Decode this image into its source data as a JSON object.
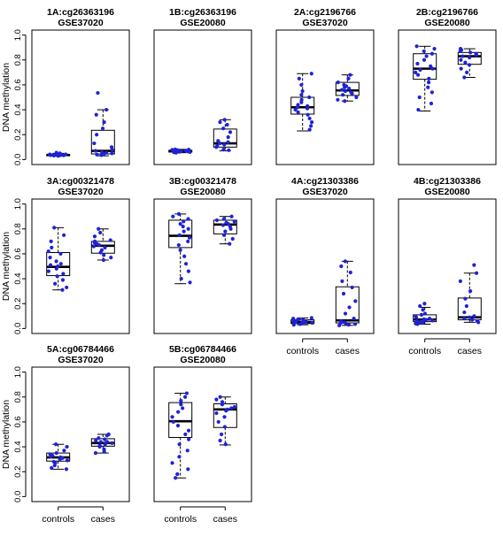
{
  "figure": {
    "ylabel": "DNA methylation",
    "categories": [
      "controls",
      "cases"
    ],
    "y_ticks": [
      0.0,
      0.2,
      0.4,
      0.6,
      0.8,
      1.0
    ],
    "y_tick_labels": [
      "0.0",
      "0.2",
      "0.4",
      "0.6",
      "0.8",
      "1.0"
    ],
    "colors": {
      "points": "#1f22d6",
      "box_fill": "#ffffff",
      "box_line": "#000000"
    }
  },
  "chart_data": [
    {
      "type": "box",
      "title": "1A:cg26363196",
      "subtitle": "GSE37020",
      "ylim": [
        -0.04,
        1.04
      ],
      "groups": [
        {
          "q1": 0.03,
          "median": 0.037,
          "q3": 0.04,
          "whisker_low": 0.027,
          "whisker_high": 0.05,
          "points": [
            0.03,
            0.033,
            0.035,
            0.036,
            0.037,
            0.038,
            0.04,
            0.042,
            0.05,
            0.055,
            0.032,
            0.034,
            0.039,
            0.041,
            0.036
          ]
        },
        {
          "q1": 0.045,
          "median": 0.07,
          "q3": 0.235,
          "whisker_low": 0.03,
          "whisker_high": 0.4,
          "points": [
            0.535,
            0.4,
            0.36,
            0.3,
            0.25,
            0.2,
            0.13,
            0.1,
            0.08,
            0.07,
            0.06,
            0.05,
            0.04,
            0.035,
            0.045,
            0.055
          ]
        }
      ]
    },
    {
      "type": "box",
      "title": "1B:cg26363196",
      "subtitle": "GSE20080",
      "ylim": [
        -0.04,
        1.04
      ],
      "groups": [
        {
          "q1": 0.06,
          "median": 0.068,
          "q3": 0.075,
          "whisker_low": 0.055,
          "whisker_high": 0.082,
          "points": [
            0.055,
            0.058,
            0.06,
            0.062,
            0.064,
            0.066,
            0.068,
            0.07,
            0.072,
            0.074,
            0.076,
            0.078,
            0.08,
            0.082,
            0.065
          ]
        },
        {
          "q1": 0.1,
          "median": 0.13,
          "q3": 0.245,
          "whisker_low": 0.07,
          "whisker_high": 0.32,
          "points": [
            0.32,
            0.3,
            0.28,
            0.25,
            0.22,
            0.18,
            0.15,
            0.13,
            0.12,
            0.11,
            0.1,
            0.08,
            0.075,
            0.14
          ]
        }
      ]
    },
    {
      "type": "box",
      "title": "2A:cg2196766",
      "subtitle": "GSE37020",
      "ylim": [
        -0.04,
        1.04
      ],
      "groups": [
        {
          "q1": 0.365,
          "median": 0.42,
          "q3": 0.5,
          "whisker_low": 0.23,
          "whisker_high": 0.69,
          "points": [
            0.69,
            0.65,
            0.6,
            0.55,
            0.52,
            0.5,
            0.48,
            0.46,
            0.44,
            0.42,
            0.41,
            0.4,
            0.38,
            0.36,
            0.33,
            0.3,
            0.27,
            0.24,
            0.43
          ]
        },
        {
          "q1": 0.515,
          "median": 0.555,
          "q3": 0.62,
          "whisker_low": 0.47,
          "whisker_high": 0.68,
          "points": [
            0.68,
            0.65,
            0.62,
            0.6,
            0.58,
            0.56,
            0.55,
            0.54,
            0.53,
            0.52,
            0.5,
            0.48,
            0.47,
            0.57,
            0.59
          ]
        }
      ]
    },
    {
      "type": "box",
      "title": "2B:cg2196766",
      "subtitle": "GSE20080",
      "ylim": [
        -0.04,
        1.04
      ],
      "groups": [
        {
          "q1": 0.645,
          "median": 0.73,
          "q3": 0.85,
          "whisker_low": 0.39,
          "whisker_high": 0.91,
          "points": [
            0.91,
            0.89,
            0.87,
            0.85,
            0.83,
            0.8,
            0.77,
            0.75,
            0.73,
            0.72,
            0.7,
            0.68,
            0.65,
            0.62,
            0.58,
            0.54,
            0.5,
            0.45,
            0.4
          ]
        },
        {
          "q1": 0.765,
          "median": 0.83,
          "q3": 0.86,
          "whisker_low": 0.66,
          "whisker_high": 0.89,
          "points": [
            0.89,
            0.88,
            0.87,
            0.86,
            0.85,
            0.84,
            0.83,
            0.82,
            0.8,
            0.78,
            0.76,
            0.73,
            0.7,
            0.66
          ]
        }
      ]
    },
    {
      "type": "box",
      "title": "3A:cg00321478",
      "subtitle": "GSE37020",
      "ylim": [
        -0.04,
        1.04
      ],
      "groups": [
        {
          "q1": 0.425,
          "median": 0.495,
          "q3": 0.61,
          "whisker_low": 0.31,
          "whisker_high": 0.81,
          "points": [
            0.81,
            0.75,
            0.7,
            0.65,
            0.62,
            0.6,
            0.57,
            0.54,
            0.51,
            0.5,
            0.48,
            0.46,
            0.44,
            0.42,
            0.39,
            0.36,
            0.33,
            0.31,
            0.52
          ]
        },
        {
          "q1": 0.605,
          "median": 0.665,
          "q3": 0.7,
          "whisker_low": 0.55,
          "whisker_high": 0.8,
          "points": [
            0.8,
            0.77,
            0.74,
            0.71,
            0.7,
            0.69,
            0.68,
            0.67,
            0.66,
            0.65,
            0.63,
            0.61,
            0.59,
            0.57,
            0.55
          ]
        }
      ]
    },
    {
      "type": "box",
      "title": "3B:cg00321478",
      "subtitle": "GSE20080",
      "ylim": [
        -0.04,
        1.04
      ],
      "groups": [
        {
          "q1": 0.65,
          "median": 0.745,
          "q3": 0.87,
          "whisker_low": 0.36,
          "whisker_high": 0.92,
          "points": [
            0.92,
            0.9,
            0.88,
            0.86,
            0.84,
            0.8,
            0.78,
            0.75,
            0.73,
            0.7,
            0.67,
            0.63,
            0.58,
            0.52,
            0.46,
            0.4,
            0.37,
            0.82
          ]
        },
        {
          "q1": 0.76,
          "median": 0.835,
          "q3": 0.87,
          "whisker_low": 0.68,
          "whisker_high": 0.9,
          "points": [
            0.9,
            0.88,
            0.87,
            0.86,
            0.85,
            0.84,
            0.83,
            0.82,
            0.8,
            0.78,
            0.75,
            0.72,
            0.68
          ]
        }
      ]
    },
    {
      "type": "box",
      "title": "4A:cg21303386",
      "subtitle": "GSE37020",
      "ylim": [
        -0.04,
        1.04
      ],
      "groups": [
        {
          "q1": 0.04,
          "median": 0.052,
          "q3": 0.07,
          "whisker_low": 0.03,
          "whisker_high": 0.085,
          "points": [
            0.03,
            0.035,
            0.04,
            0.045,
            0.05,
            0.052,
            0.055,
            0.06,
            0.065,
            0.07,
            0.075,
            0.08,
            0.085,
            0.048,
            0.058
          ]
        },
        {
          "q1": 0.045,
          "median": 0.065,
          "q3": 0.335,
          "whisker_low": 0.025,
          "whisker_high": 0.54,
          "points": [
            0.54,
            0.5,
            0.45,
            0.38,
            0.33,
            0.28,
            0.22,
            0.17,
            0.12,
            0.08,
            0.06,
            0.05,
            0.04,
            0.035,
            0.03,
            0.025,
            0.045
          ]
        }
      ]
    },
    {
      "type": "box",
      "title": "4B:cg21303386",
      "subtitle": "GSE20080",
      "ylim": [
        -0.04,
        1.04
      ],
      "groups": [
        {
          "q1": 0.055,
          "median": 0.072,
          "q3": 0.11,
          "whisker_low": 0.035,
          "whisker_high": 0.17,
          "points": [
            0.2,
            0.18,
            0.15,
            0.12,
            0.11,
            0.1,
            0.09,
            0.08,
            0.075,
            0.07,
            0.065,
            0.06,
            0.055,
            0.05,
            0.045,
            0.04,
            0.035
          ]
        },
        {
          "q1": 0.07,
          "median": 0.09,
          "q3": 0.245,
          "whisker_low": 0.05,
          "whisker_high": 0.445,
          "points": [
            0.51,
            0.445,
            0.38,
            0.3,
            0.24,
            0.18,
            0.13,
            0.1,
            0.09,
            0.08,
            0.07,
            0.06,
            0.05
          ]
        }
      ]
    },
    {
      "type": "box",
      "title": "5A:cg06784466",
      "subtitle": "GSE37020",
      "ylim": [
        -0.04,
        1.04
      ],
      "groups": [
        {
          "q1": 0.285,
          "median": 0.315,
          "q3": 0.35,
          "whisker_low": 0.22,
          "whisker_high": 0.42,
          "points": [
            0.42,
            0.4,
            0.37,
            0.35,
            0.34,
            0.33,
            0.32,
            0.31,
            0.3,
            0.29,
            0.28,
            0.27,
            0.25,
            0.23,
            0.22,
            0.315
          ]
        },
        {
          "q1": 0.405,
          "median": 0.43,
          "q3": 0.465,
          "whisker_low": 0.35,
          "whisker_high": 0.5,
          "points": [
            0.5,
            0.49,
            0.47,
            0.46,
            0.45,
            0.44,
            0.43,
            0.42,
            0.41,
            0.4,
            0.38,
            0.36,
            0.35,
            0.44
          ]
        }
      ]
    },
    {
      "type": "box",
      "title": "5B:cg06784466",
      "subtitle": "GSE20080",
      "ylim": [
        -0.04,
        1.04
      ],
      "groups": [
        {
          "q1": 0.475,
          "median": 0.605,
          "q3": 0.755,
          "whisker_low": 0.15,
          "whisker_high": 0.83,
          "points": [
            0.83,
            0.8,
            0.77,
            0.74,
            0.71,
            0.68,
            0.64,
            0.6,
            0.57,
            0.53,
            0.5,
            0.46,
            0.42,
            0.37,
            0.32,
            0.27,
            0.22,
            0.18,
            0.15
          ]
        },
        {
          "q1": 0.555,
          "median": 0.7,
          "q3": 0.745,
          "whisker_low": 0.415,
          "whisker_high": 0.8,
          "points": [
            0.8,
            0.78,
            0.76,
            0.74,
            0.72,
            0.71,
            0.7,
            0.69,
            0.67,
            0.64,
            0.6,
            0.56,
            0.5,
            0.45,
            0.42
          ]
        }
      ]
    }
  ]
}
